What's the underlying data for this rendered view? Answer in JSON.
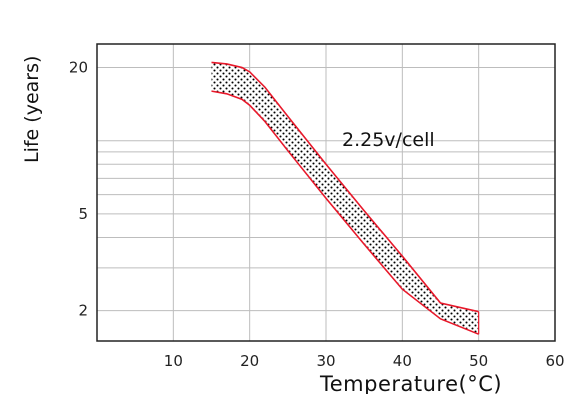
{
  "chart_data": {
    "type": "area",
    "xlabel": "Temperature(°C)",
    "ylabel": "Life (years)",
    "x_ticks": [
      "10",
      "20",
      "30",
      "40",
      "50",
      "60"
    ],
    "y_ticks": [
      "2",
      "5",
      "20"
    ],
    "xlim": [
      0,
      60
    ],
    "ylim": [
      1.5,
      25
    ],
    "y_scale": "log",
    "grid": true,
    "annotation": "2.25v/cell",
    "colors": {
      "band_edge": "#e8182a",
      "band_dots": "#000000",
      "grid": "#bdbdbd",
      "frame": "#222222"
    },
    "series": [
      {
        "x": [
          15,
          17,
          19,
          20,
          22,
          25,
          30,
          35,
          40,
          45,
          50
        ],
        "upper": [
          21,
          20.7,
          20,
          19.2,
          16.6,
          12.6,
          8.0,
          5.15,
          3.35,
          2.15,
          1.98
        ],
        "lower": [
          16.0,
          15.6,
          14.8,
          14.0,
          12.0,
          9.1,
          5.8,
          3.75,
          2.45,
          1.85,
          1.6
        ]
      }
    ]
  }
}
